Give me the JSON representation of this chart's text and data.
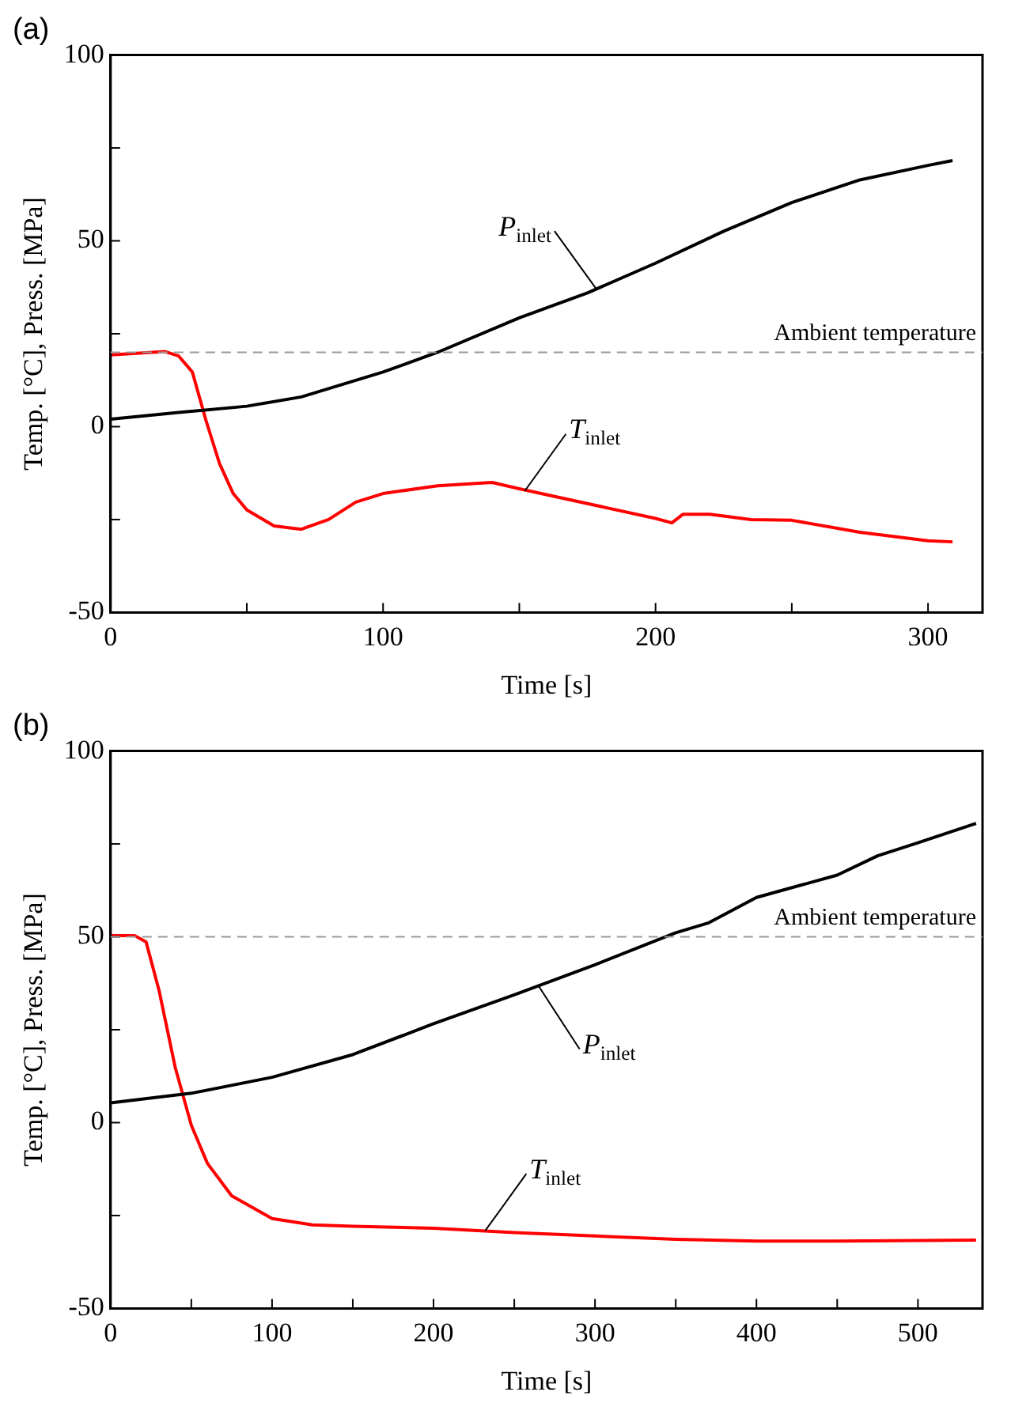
{
  "chart_data": [
    {
      "type": "line",
      "title": "(a)",
      "xlabel": "Time [s]",
      "ylabel": "Temp. [°C], Press. [MPa]",
      "xlim": [
        0,
        320
      ],
      "ylim": [
        -50,
        100
      ],
      "xticks": [
        0,
        {
          "value": 50,
          "label": null
        },
        100,
        {
          "value": 150,
          "label": null
        },
        200,
        {
          "value": 250,
          "label": null
        },
        300
      ],
      "yticks": [
        -50,
        {
          "value": -25,
          "label": null
        },
        0,
        {
          "value": 25,
          "label": null
        },
        50,
        {
          "value": 75,
          "label": null
        },
        100
      ],
      "series": [
        {
          "color": "#000000",
          "x": [
            0,
            25,
            50,
            70,
            100,
            120,
            150,
            175,
            200,
            225,
            250,
            275,
            300,
            309
          ],
          "values": [
            2,
            3.8,
            5.5,
            8,
            14.7,
            20,
            29.3,
            36,
            44,
            52.6,
            60.3,
            66.4,
            70.3,
            71.6
          ]
        },
        {
          "color": "#ff0000",
          "x": [
            0,
            20,
            25,
            30,
            35,
            40,
            45,
            50,
            60,
            70,
            80,
            90,
            100,
            120,
            140,
            150,
            175,
            200,
            206,
            210,
            220,
            235,
            250,
            275,
            300,
            309
          ],
          "values": [
            19.3,
            20.2,
            19,
            14.7,
            1.7,
            -10,
            -18,
            -22.4,
            -26.7,
            -27.6,
            -25,
            -20.3,
            -18,
            -15.9,
            -15,
            -16.7,
            -20.7,
            -24.7,
            -25.9,
            -23.6,
            -23.6,
            -25,
            -25.2,
            -28.4,
            -30.7,
            -31
          ]
        }
      ],
      "ref_lines": [
        {
          "axis": "y",
          "value": 20,
          "label": "Ambient temperature",
          "color": "#999999",
          "line_style": "dashed"
        }
      ],
      "annotations": [
        {
          "text": "P$_{inlet}$",
          "x": 178,
          "y": 37.3
        },
        {
          "text": "T$_{inlet}$",
          "x": 152,
          "y": -17.3
        }
      ],
      "grid": false,
      "legend": false,
      "marker": "none",
      "line_style": "solid"
    },
    {
      "type": "line",
      "title": "(b)",
      "xlabel": "Time [s]",
      "ylabel": "Temp. [°C], Press. [MPa]",
      "xlim": [
        0,
        540
      ],
      "ylim": [
        -50,
        100
      ],
      "xticks": [
        0,
        {
          "value": 50,
          "label": null
        },
        100,
        {
          "value": 150,
          "label": null
        },
        200,
        {
          "value": 250,
          "label": null
        },
        300,
        {
          "value": 350,
          "label": null
        },
        400,
        {
          "value": 450,
          "label": null
        },
        500
      ],
      "yticks": [
        -50,
        {
          "value": -25,
          "label": null
        },
        0,
        {
          "value": 25,
          "label": null
        },
        50,
        {
          "value": 75,
          "label": null
        },
        100
      ],
      "series": [
        {
          "color": "#000000",
          "x": [
            0,
            50,
            100,
            150,
            200,
            250,
            300,
            350,
            370,
            400,
            450,
            475,
            500,
            536
          ],
          "values": [
            5.3,
            7.9,
            12.2,
            18.3,
            26.6,
            34.4,
            42.5,
            51.1,
            53.7,
            60.6,
            66.6,
            71.8,
            75.3,
            80.5
          ]
        },
        {
          "color": "#ff0000",
          "x": [
            0,
            15,
            22,
            30,
            40,
            50,
            60,
            75,
            100,
            125,
            150,
            200,
            250,
            300,
            350,
            400,
            450,
            536
          ],
          "values": [
            50.3,
            50.3,
            48.6,
            35.6,
            14.9,
            -0.7,
            -11,
            -19.7,
            -25.8,
            -27.5,
            -27.9,
            -28.4,
            -29.6,
            -30.5,
            -31.4,
            -31.9,
            -31.9,
            -31.6
          ]
        }
      ],
      "ref_lines": [
        {
          "axis": "y",
          "value": 50,
          "label": "Ambient temperature",
          "color": "#999999",
          "line_style": "dashed"
        }
      ],
      "annotations": [
        {
          "text": "P$_{inlet}$",
          "x": 265,
          "y": 36.8
        },
        {
          "text": "T$_{inlet}$",
          "x": 232,
          "y": -29.1
        }
      ],
      "grid": false,
      "legend": false,
      "marker": "none",
      "line_style": "solid"
    }
  ]
}
